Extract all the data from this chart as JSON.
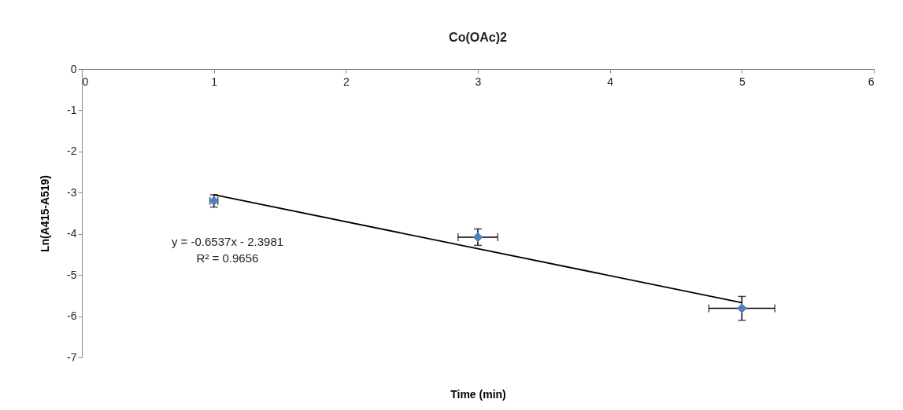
{
  "chart_data": {
    "type": "scatter",
    "title": "Co(OAc)2",
    "xlabel": "Time (min)",
    "ylabel": "Ln(A415-A519)",
    "annotations": [
      "y = -0.6537x - 2.3981",
      "R² = 0.9656"
    ],
    "xlim": [
      0,
      6
    ],
    "xticks": [
      0,
      1,
      2,
      3,
      4,
      5,
      6
    ],
    "ylim": [
      -7,
      0
    ],
    "yticks": [
      -7,
      -6,
      -5,
      -4,
      -3,
      -2,
      -1,
      0
    ],
    "grid": false,
    "marker": "diamond",
    "series": [
      {
        "type": "scatter",
        "color": "#4f81bd",
        "x": [
          1,
          3,
          5
        ],
        "values": [
          -3.2,
          -4.08,
          -5.81
        ],
        "errors": [
          0.15,
          0.2,
          0.29
        ],
        "xerrors": [
          0.03,
          0.15,
          0.25
        ]
      },
      {
        "type": "line",
        "color": "#000000",
        "x": [
          1,
          5
        ],
        "values": [
          -3.05,
          -5.67
        ],
        "marker": "none",
        "line_style": "solid"
      }
    ]
  }
}
